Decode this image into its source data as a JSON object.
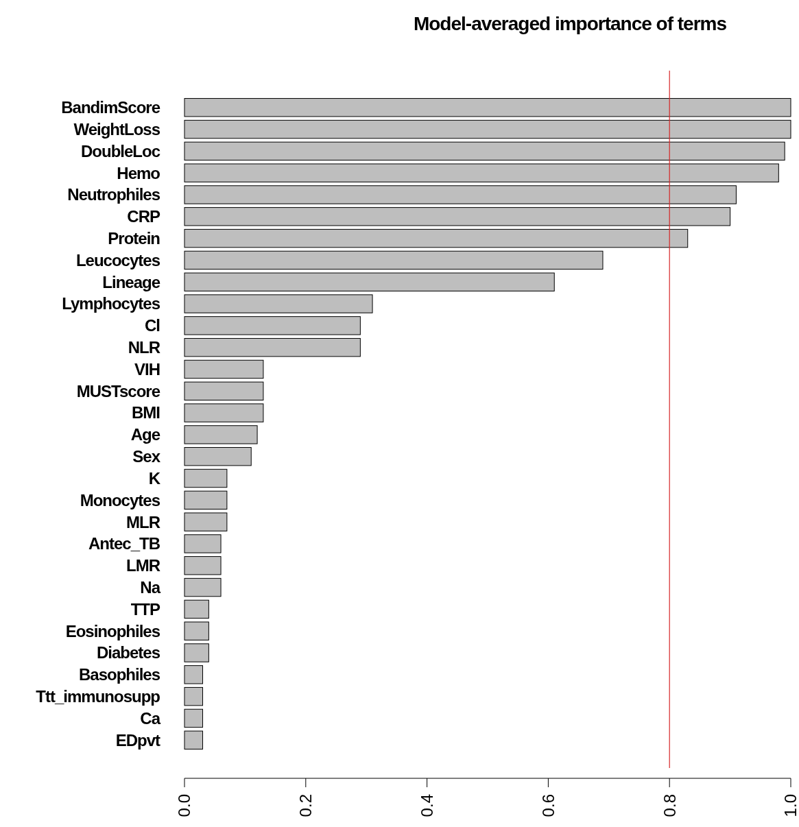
{
  "chart_data": {
    "type": "bar",
    "orientation": "horizontal",
    "title": "Model-averaged importance of terms",
    "categories": [
      "BandimScore",
      "WeightLoss",
      "DoubleLoc",
      "Hemo",
      "Neutrophiles",
      "CRP",
      "Protein",
      "Leucocytes",
      "Lineage",
      "Lymphocytes",
      "Cl",
      "NLR",
      "VIH",
      "MUSTscore",
      "BMI",
      "Age",
      "Sex",
      "K",
      "Monocytes",
      "MLR",
      "Antec_TB",
      "LMR",
      "Na",
      "TTP",
      "Eosinophiles",
      "Diabetes",
      "Basophiles",
      "Ttt_immunosupp",
      "Ca",
      "EDpvt"
    ],
    "values": [
      1.0,
      1.0,
      0.99,
      0.98,
      0.91,
      0.9,
      0.83,
      0.69,
      0.61,
      0.31,
      0.29,
      0.29,
      0.13,
      0.13,
      0.13,
      0.12,
      0.11,
      0.07,
      0.07,
      0.07,
      0.06,
      0.06,
      0.06,
      0.04,
      0.04,
      0.04,
      0.03,
      0.03,
      0.03,
      0.03
    ],
    "color": "#bebebe",
    "xlim": [
      0,
      1
    ],
    "xticks": [
      {
        "value": 0,
        "label": "0.0"
      },
      0.2,
      0.4,
      0.6,
      0.8,
      {
        "value": 1,
        "label": "1.0"
      }
    ],
    "ref_lines": [
      {
        "axis": "x",
        "value": 0.8,
        "color": "#d62728"
      }
    ],
    "grid": false
  }
}
